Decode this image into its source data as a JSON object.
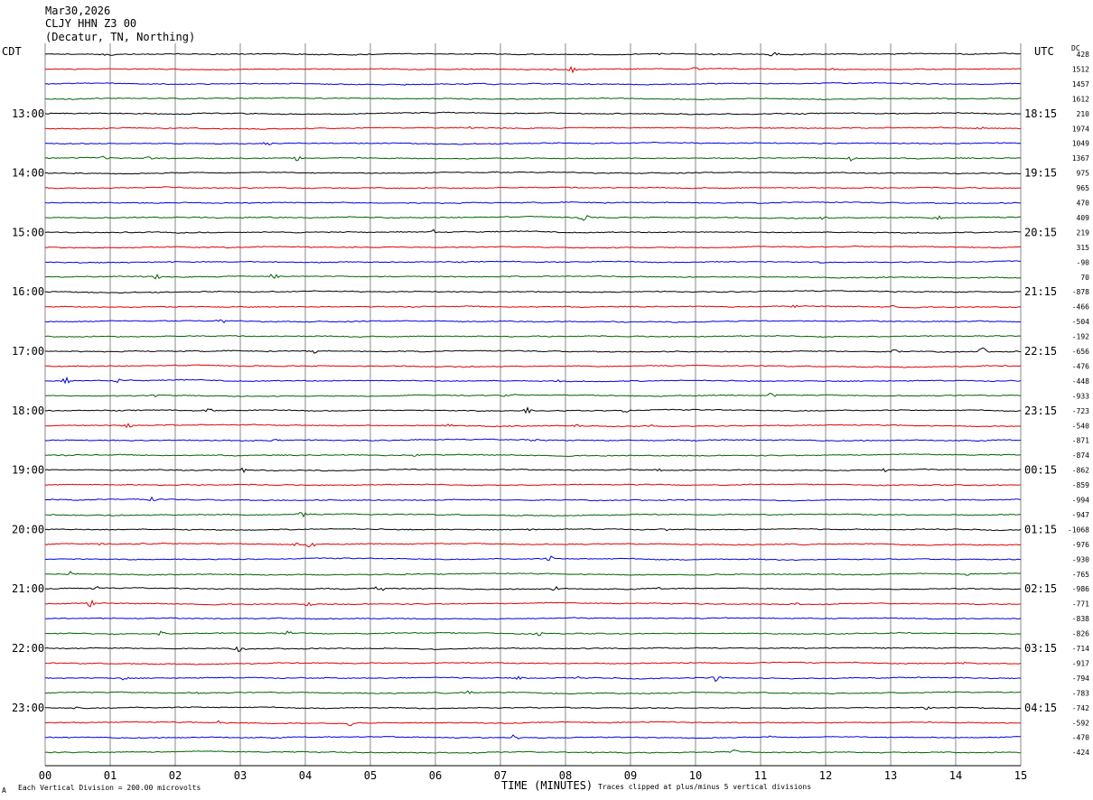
{
  "header": {
    "date": "Mar30,2026",
    "station": "CLJY HHN Z3 00",
    "location": "(Decatur, TN, Northing)"
  },
  "chart_data": {
    "type": "line",
    "title": "",
    "left_zone": "CDT",
    "right_zone": "UTC",
    "dc_heading": "DC",
    "xlabel": "TIME (MINUTES)",
    "x_ticks": [
      "00",
      "01",
      "02",
      "03",
      "04",
      "05",
      "06",
      "07",
      "08",
      "09",
      "10",
      "11",
      "12",
      "13",
      "14",
      "15"
    ],
    "xlim": [
      0,
      15
    ],
    "grid": "vertical minute lines",
    "trace_colors": [
      "#000000",
      "#e00000",
      "#0000e0",
      "#006400"
    ],
    "left_hour_labels": [
      "13:00",
      "14:00",
      "15:00",
      "16:00",
      "17:00",
      "18:00",
      "19:00",
      "20:00",
      "21:00",
      "22:00",
      "23:00"
    ],
    "right_hour_labels": [
      "18:15",
      "19:15",
      "20:15",
      "21:15",
      "22:15",
      "23:15",
      "00:15",
      "01:15",
      "02:15",
      "03:15",
      "04:15"
    ],
    "dc_offsets": [
      "428",
      "1512",
      "1457",
      "1612",
      "210",
      "1974",
      "1049",
      "1367",
      "975",
      "965",
      "470",
      "409",
      "219",
      "315",
      "-90",
      "70",
      "-878",
      "-466",
      "-504",
      "-192",
      "-656",
      "-476",
      "-448",
      "-933",
      "-723",
      "-540",
      "-871",
      "-874",
      "-862",
      "-859",
      "-994",
      "-947",
      "-1068",
      "-976",
      "-930",
      "-765",
      "-986",
      "-771",
      "-838",
      "-826",
      "-714",
      "-917",
      "-794",
      "-783",
      "-742",
      "-592",
      "-470",
      "-424"
    ],
    "footer_scale": "Each Vertical Division =  200.00 microvolts",
    "footer_clip": "Traces clipped at plus/minus 5 vertical divisions",
    "corner_mark": "A"
  }
}
